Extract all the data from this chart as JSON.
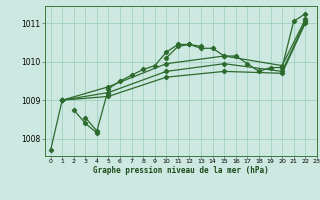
{
  "title": "Graphe pression niveau de la mer (hPa)",
  "bg_color": "#cce8e0",
  "grid_color": "#99ccbb",
  "line_color": "#2d6a2d",
  "xlim": [
    -0.5,
    23
  ],
  "ylim": [
    1007.55,
    1011.45
  ],
  "yticks": [
    1008,
    1009,
    1010,
    1011
  ],
  "xticks": [
    0,
    1,
    2,
    3,
    4,
    5,
    6,
    7,
    8,
    9,
    10,
    11,
    12,
    13,
    14,
    15,
    16,
    17,
    18,
    19,
    20,
    21,
    22,
    23
  ],
  "line1": [
    1007.7,
    1009.0,
    null,
    1008.55,
    1008.2,
    1009.3,
    1009.5,
    1009.65,
    1009.8,
    1009.9,
    1010.25,
    1010.45,
    1010.45,
    1010.35,
    1010.35,
    1010.15,
    1010.15,
    1009.95,
    1009.75,
    1009.85,
    1009.85,
    1011.05,
    1011.25,
    null
  ],
  "line2": [
    null,
    null,
    1008.75,
    1008.4,
    1008.15,
    null,
    null,
    null,
    null,
    null,
    1010.1,
    1010.4,
    1010.45,
    1010.4,
    null,
    null,
    null,
    null,
    null,
    null,
    null,
    null,
    null,
    null
  ],
  "line3_x": [
    1,
    5,
    10,
    15,
    20,
    22
  ],
  "line3_y": [
    1009.0,
    1009.35,
    1009.95,
    1010.15,
    1009.9,
    1011.1
  ],
  "line4_x": [
    1,
    5,
    10,
    15,
    20,
    22
  ],
  "line4_y": [
    1009.0,
    1009.2,
    1009.75,
    1009.95,
    1009.75,
    1011.05
  ],
  "line5_x": [
    1,
    5,
    10,
    15,
    20,
    22
  ],
  "line5_y": [
    1009.0,
    1009.1,
    1009.6,
    1009.75,
    1009.7,
    1011.0
  ]
}
